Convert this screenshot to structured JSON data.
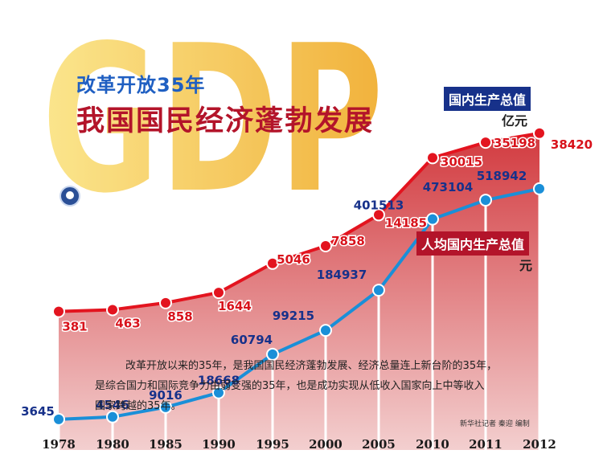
{
  "title": {
    "subtitle": "改革开放35年",
    "main": "我国国民经济蓬勃发展"
  },
  "legend": {
    "gdp_label": "国内生产总值",
    "gdp_unit": "亿元",
    "per_capita_label": "人均国内生产总值",
    "per_capita_unit": "元"
  },
  "watermark": "GDP",
  "note": {
    "line1": "改革开放以来的35年，是我国国民经济蓬勃发展、经济总量连上新台阶的35年，",
    "line2": "是综合国力和国际竞争力由弱变强的35年，也是成功实现从低收入国家向上中等收入",
    "line3": "国家跨越的35年。"
  },
  "credit": "新华社记者 秦迎 编制",
  "colors": {
    "gdp_line": "#1a8fd8",
    "gdp_label": "#17318a",
    "gdp_fill_top": "#aee0fb",
    "gdp_fill_bottom": "#3da6ee",
    "per_capita_line": "#e3141f",
    "per_capita_label": "#d8121b",
    "per_capita_fill_top": "#d23a3f",
    "per_capita_fill_bottom": "#f3cfcf",
    "title_blue": "#1f5fc2",
    "title_red": "#b3142a",
    "watermark": "#f2b21c"
  },
  "chart_data": {
    "type": "area",
    "categories": [
      "1978",
      "1980",
      "1985",
      "1990",
      "1995",
      "2000",
      "2005",
      "2010",
      "2011",
      "2012"
    ],
    "series": [
      {
        "name": "国内生产总值",
        "unit": "亿元",
        "values": [
          3645,
          4546,
          9016,
          18668,
          60794,
          99215,
          184937,
          401513,
          473104,
          518942
        ]
      },
      {
        "name": "人均国内生产总值",
        "unit": "元",
        "values": [
          381,
          463,
          858,
          1644,
          5046,
          7858,
          14185,
          30015,
          35198,
          38420
        ]
      }
    ],
    "value_labels": {
      "gdp": [
        "3645",
        "4546",
        "9016",
        "18668",
        "60794",
        "99215",
        "184937",
        "401513",
        "473104",
        "518942"
      ],
      "per_capita": [
        "381",
        "463",
        "858",
        "1644",
        "5046",
        "7858",
        "14185",
        "30015",
        "35198",
        "38420"
      ]
    },
    "grid": false,
    "legend_position": "right"
  }
}
